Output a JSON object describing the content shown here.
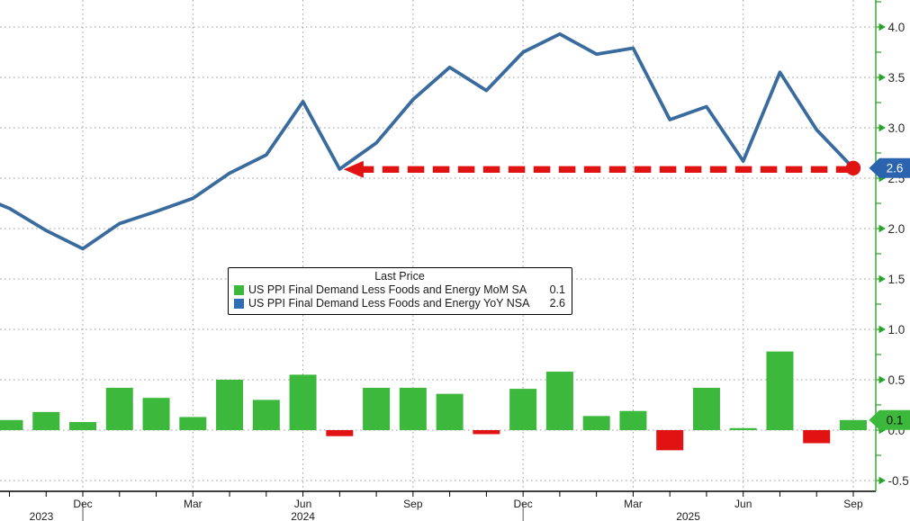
{
  "legend": {
    "title": "Last Price",
    "items": [
      {
        "series": "MoM SA",
        "swatch_color": "#3cb93c",
        "label": "US PPI Final Demand Less Foods and Energy MoM SA",
        "value": "0.1"
      },
      {
        "series": "YoY NSA",
        "swatch_color": "#2e6db4",
        "label": "US PPI Final Demand Less Foods and Energy YoY NSA",
        "value": "2.6"
      }
    ]
  },
  "chart_data": {
    "type": "line+bar",
    "categories": [
      "Oct 2023",
      "Nov 2023",
      "Dec 2023",
      "Jan 2024",
      "Feb 2024",
      "Mar 2024",
      "Apr 2024",
      "May 2024",
      "Jun 2024",
      "Jul 2024",
      "Aug 2024",
      "Sep 2024",
      "Oct 2024",
      "Nov 2024",
      "Dec 2024",
      "Jan 2025",
      "Feb 2025",
      "Mar 2025",
      "Apr 2025",
      "May 2025",
      "Jun 2025",
      "Jul 2025",
      "Aug 2025",
      "Sep 2025"
    ],
    "series": [
      {
        "name": "US PPI Final Demand Less Foods and Energy MoM SA",
        "type": "bar",
        "color_positive": "#3cb93c",
        "color_negative": "#e11212",
        "last_value": 0.1,
        "values": [
          0.1,
          0.18,
          0.08,
          0.42,
          0.32,
          0.13,
          0.5,
          0.3,
          0.55,
          -0.06,
          0.42,
          0.42,
          0.36,
          -0.04,
          0.41,
          0.58,
          0.14,
          0.19,
          -0.2,
          0.42,
          0.02,
          0.78,
          -0.13,
          0.1
        ]
      },
      {
        "name": "US PPI Final Demand Less Foods and Energy YoY NSA",
        "type": "line",
        "color": "#3a6b9e",
        "last_value": 2.6,
        "clipped_lead_value": 2.35,
        "values": [
          2.2,
          1.98,
          1.8,
          2.05,
          2.17,
          2.3,
          2.55,
          2.73,
          3.26,
          2.59,
          2.85,
          3.28,
          3.6,
          3.37,
          3.75,
          3.93,
          3.73,
          3.79,
          3.08,
          3.21,
          2.67,
          3.55,
          2.98,
          2.6
        ]
      }
    ],
    "y_axis": {
      "side": "right",
      "min": -0.5,
      "max": 4.25,
      "major_step": 0.5,
      "minor_step": 0.25,
      "tick_labels": [
        "4.0",
        "3.5",
        "3.0",
        "2.5",
        "2.0",
        "1.5",
        "1.0",
        "0.5",
        "0.0",
        "-0.5"
      ],
      "axis_color": "#2ba32b",
      "label_color": "#2b2b2b",
      "badges": [
        {
          "text": "2.6",
          "value": 2.6,
          "bg": "#2b63ae",
          "fg": "#ffffff",
          "series": "YoY NSA"
        },
        {
          "text": "0.1",
          "value": 0.1,
          "bg": "#3cb93c",
          "fg": "#101010",
          "series": "MoM SA"
        }
      ]
    },
    "x_axis": {
      "quarter_tick_indices": [
        2,
        5,
        8,
        11,
        14,
        17,
        20,
        23
      ],
      "quarter_labels": [
        "Dec",
        "Mar",
        "Jun",
        "Sep",
        "Dec",
        "Mar",
        "Jun",
        "Sep"
      ],
      "year_labels": [
        "2023",
        "2024",
        "2025"
      ],
      "year_separator_indices": [
        2,
        14
      ],
      "axis_color": "#000000",
      "label_color": "#1c1c1c"
    },
    "grid": {
      "on": true,
      "color": "#9f9f9f",
      "style": "dotted"
    },
    "annotations": [
      {
        "type": "dashed-arrow",
        "color": "#e11212",
        "value": 2.6,
        "from_month": "Sep 2025",
        "to_month": "Jul 2024",
        "meaning": "YoY rate back at 2.6, same level as Jul 2024"
      },
      {
        "type": "last-point-dot",
        "color": "#e11212",
        "month": "Sep 2025",
        "value": 2.6
      }
    ],
    "legend_position": "center"
  }
}
